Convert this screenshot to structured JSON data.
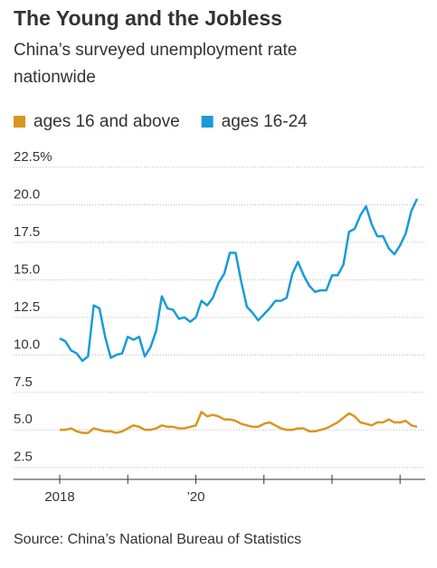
{
  "chart_data": {
    "type": "line",
    "title": "The Young and the Jobless",
    "subtitle": [
      "China’s surveyed unemployment rate",
      "nationwide"
    ],
    "source": "Source: China’s National Bureau of Statistics",
    "categories": [
      "2018",
      null,
      null,
      null,
      null,
      null,
      null,
      null,
      null,
      null,
      null,
      null,
      null,
      null,
      null,
      null,
      null,
      null,
      null,
      null,
      null,
      null,
      null,
      null,
      "’20",
      null,
      null,
      null,
      null,
      null,
      null,
      null,
      null,
      null,
      null,
      null,
      null,
      null,
      null,
      null,
      null,
      null,
      null,
      null,
      null,
      null,
      null,
      null,
      null,
      null,
      null,
      null,
      null,
      null,
      null,
      null,
      null,
      null,
      null,
      null,
      null,
      null,
      null,
      null
    ],
    "xticks": [
      0,
      12,
      24,
      36,
      48,
      60
    ],
    "series": [
      {
        "name": "ages 16 and above",
        "color": "#d9961f",
        "values": [
          5.0,
          5.0,
          5.1,
          4.9,
          4.8,
          4.8,
          5.1,
          5.0,
          4.9,
          4.9,
          4.8,
          4.9,
          5.1,
          5.3,
          5.2,
          5.0,
          5.0,
          5.1,
          5.3,
          5.2,
          5.2,
          5.1,
          5.1,
          5.2,
          5.3,
          6.2,
          5.9,
          6.0,
          5.9,
          5.7,
          5.7,
          5.6,
          5.4,
          5.3,
          5.2,
          5.2,
          5.4,
          5.5,
          5.3,
          5.1,
          5.0,
          5.0,
          5.1,
          5.1,
          4.9,
          4.9,
          5.0,
          5.1,
          5.3,
          5.5,
          5.8,
          6.1,
          5.9,
          5.5,
          5.4,
          5.3,
          5.5,
          5.5,
          5.7,
          5.5,
          5.5,
          5.6,
          5.3,
          5.2
        ]
      },
      {
        "name": "ages 16-24",
        "color": "#1a9bd7",
        "values": [
          11.1,
          10.9,
          10.3,
          10.1,
          9.6,
          9.9,
          13.3,
          13.1,
          11.2,
          9.8,
          10.0,
          10.1,
          11.2,
          11.0,
          11.2,
          9.9,
          10.5,
          11.6,
          13.9,
          13.1,
          13.0,
          12.4,
          12.5,
          12.2,
          12.5,
          13.6,
          13.3,
          13.8,
          14.8,
          15.4,
          16.8,
          16.8,
          14.9,
          13.2,
          12.8,
          12.3,
          12.7,
          13.1,
          13.6,
          13.6,
          13.8,
          15.4,
          16.2,
          15.3,
          14.6,
          14.2,
          14.3,
          14.3,
          15.3,
          15.3,
          16.0,
          18.2,
          18.4,
          19.3,
          19.9,
          18.7,
          17.9,
          17.9,
          17.1,
          16.7,
          17.3,
          18.1,
          19.6,
          20.4
        ]
      }
    ],
    "ylim": [
      1.7,
      22.5
    ],
    "yticks": [
      {
        "value": 2.5,
        "label": "2.5"
      },
      {
        "value": 5,
        "label": "5.0"
      },
      {
        "value": 7.5,
        "label": "7.5"
      },
      {
        "value": 10,
        "label": "10.0"
      },
      {
        "value": 12.5,
        "label": "12.5"
      },
      {
        "value": 15,
        "label": "15.0"
      },
      {
        "value": 17.5,
        "label": "17.5"
      },
      {
        "value": 20,
        "label": "20.0"
      },
      {
        "value": 22.5,
        "label": "22.5%"
      }
    ],
    "grid": true
  }
}
